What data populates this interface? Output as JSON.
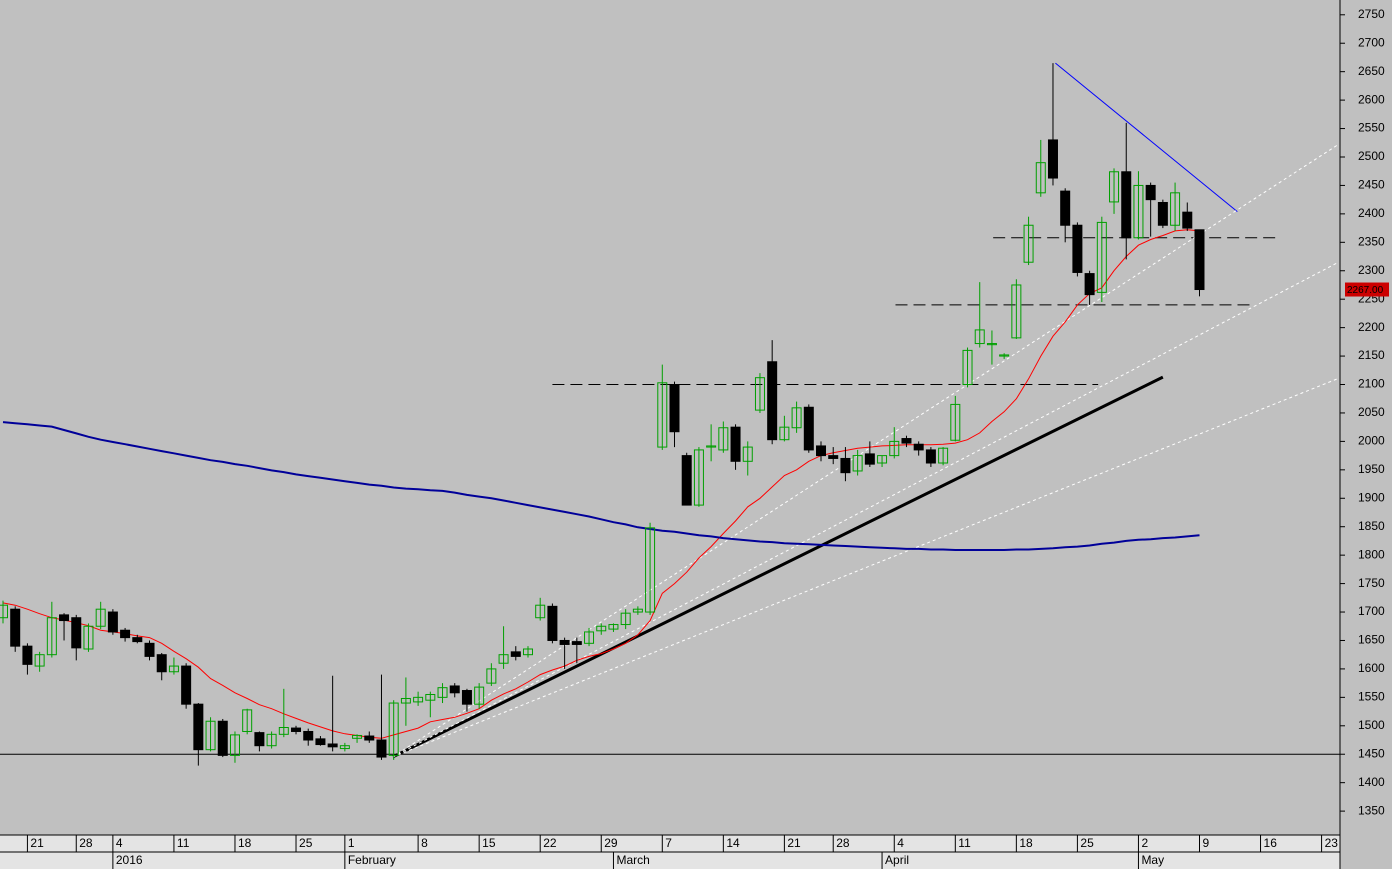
{
  "chart_data": {
    "type": "candlestick",
    "categories": [
      null,
      null,
      "21",
      null,
      null,
      null,
      "28",
      null,
      null,
      "4",
      null,
      null,
      null,
      null,
      "11",
      null,
      null,
      null,
      null,
      "18",
      null,
      null,
      null,
      null,
      "25",
      null,
      null,
      null,
      "1",
      null,
      null,
      null,
      null,
      null,
      "8",
      null,
      null,
      null,
      null,
      "15",
      null,
      null,
      null,
      null,
      "22",
      null,
      null,
      null,
      null,
      "29",
      null,
      null,
      null,
      null,
      "7",
      null,
      null,
      null,
      null,
      "14",
      null,
      null,
      null,
      null,
      "21",
      null,
      null,
      null,
      "28",
      null,
      null,
      null,
      null,
      "4",
      null,
      null,
      null,
      null,
      "11",
      null,
      null,
      null,
      null,
      "18",
      null,
      null,
      null,
      null,
      "25",
      null,
      null,
      null,
      null,
      "2",
      null,
      null,
      null,
      null,
      "9",
      null,
      null,
      null,
      null,
      "16",
      null,
      null,
      null,
      null,
      "23",
      null
    ],
    "month_categories": [
      null,
      null,
      null,
      null,
      null,
      null,
      null,
      null,
      null,
      "2016",
      null,
      null,
      null,
      null,
      null,
      null,
      null,
      null,
      null,
      null,
      null,
      null,
      null,
      null,
      null,
      null,
      null,
      null,
      "February",
      null,
      null,
      null,
      null,
      null,
      null,
      null,
      null,
      null,
      null,
      null,
      null,
      null,
      null,
      null,
      null,
      null,
      null,
      null,
      null,
      null,
      "March",
      null,
      null,
      null,
      null,
      null,
      null,
      null,
      null,
      null,
      null,
      null,
      null,
      null,
      null,
      null,
      null,
      null,
      null,
      null,
      null,
      null,
      "April",
      null,
      null,
      null,
      null,
      null,
      null,
      null,
      null,
      null,
      null,
      null,
      null,
      null,
      null,
      null,
      null,
      null,
      null,
      null,
      null,
      "May",
      null,
      null,
      null,
      null,
      null,
      null,
      null,
      null,
      null,
      null,
      null,
      null,
      null,
      null,
      null,
      null
    ],
    "open": [
      1690,
      1705,
      1640,
      1605,
      1625,
      1695,
      1690,
      1635,
      1675,
      1700,
      1668,
      1655,
      1645,
      1625,
      1595,
      1605,
      1538,
      1458,
      1508,
      1448,
      1490,
      1488,
      1465,
      1485,
      1496,
      1490,
      1477,
      1468,
      1460,
      1478,
      1482,
      1475,
      1448,
      1540,
      1542,
      1545,
      1550,
      1570,
      1562,
      1538,
      1575,
      1610,
      1630,
      1625,
      1690,
      1710,
      1650,
      1648,
      1645,
      1667,
      1670,
      1678,
      1700,
      1700,
      1990,
      2100,
      1975,
      1888,
      1990,
      1985,
      2025,
      1965,
      2055,
      2140,
      2003,
      2024,
      2060,
      1992,
      1975,
      1970,
      1948,
      1978,
      1962,
      1975,
      2005,
      1995,
      1985,
      1962,
      2002,
      2100,
      2172,
      2170,
      2150,
      2182,
      2315,
      2437,
      2530,
      2440,
      2380,
      2295,
      2262,
      2421,
      2474,
      2358,
      2450,
      2420,
      2380,
      2403,
      2372,
      null,
      null,
      null,
      null,
      null,
      null,
      null,
      null,
      null,
      null,
      null
    ],
    "high": [
      1720,
      1710,
      1645,
      1630,
      1718,
      1698,
      1695,
      1680,
      1718,
      1705,
      1672,
      1660,
      1650,
      1628,
      1620,
      1610,
      1540,
      1515,
      1512,
      1490,
      1530,
      1490,
      1490,
      1565,
      1500,
      1495,
      1482,
      1588,
      1470,
      1485,
      1490,
      1590,
      1545,
      1585,
      1560,
      1560,
      1575,
      1575,
      1565,
      1575,
      1610,
      1675,
      1640,
      1640,
      1725,
      1715,
      1655,
      1655,
      1672,
      1680,
      1680,
      1705,
      1710,
      1857,
      2135,
      2105,
      1980,
      1990,
      2030,
      2035,
      2030,
      2000,
      2120,
      2178,
      2045,
      2070,
      2065,
      2000,
      1990,
      1990,
      1985,
      2000,
      1975,
      2025,
      2010,
      2000,
      1990,
      1990,
      2080,
      2165,
      2280,
      2195,
      2155,
      2285,
      2395,
      2530,
      2665,
      2445,
      2385,
      2300,
      2395,
      2480,
      2560,
      2475,
      2455,
      2425,
      2455,
      2420,
      2372,
      null,
      null,
      null,
      null,
      null,
      null,
      null,
      null,
      null,
      null,
      null
    ],
    "low": [
      1680,
      1630,
      1590,
      1595,
      1620,
      1650,
      1615,
      1630,
      1670,
      1660,
      1648,
      1645,
      1615,
      1580,
      1590,
      1530,
      1430,
      1455,
      1445,
      1435,
      1485,
      1455,
      1460,
      1480,
      1485,
      1465,
      1465,
      1455,
      1455,
      1470,
      1470,
      1440,
      1440,
      1500,
      1535,
      1515,
      1540,
      1550,
      1525,
      1530,
      1570,
      1600,
      1615,
      1620,
      1685,
      1645,
      1600,
      1610,
      1640,
      1660,
      1665,
      1670,
      1695,
      1695,
      1985,
      1990,
      1888,
      1885,
      1965,
      1980,
      1950,
      1940,
      2050,
      1995,
      2000,
      2015,
      1980,
      1965,
      1960,
      1930,
      1940,
      1955,
      1955,
      1970,
      1990,
      1975,
      1955,
      1958,
      2000,
      2095,
      2165,
      2135,
      2145,
      2180,
      2310,
      2430,
      2450,
      2350,
      2290,
      2240,
      2245,
      2400,
      2320,
      2355,
      2360,
      2375,
      2370,
      2370,
      2255,
      null,
      null,
      null,
      null,
      null,
      null,
      null,
      null,
      null,
      null,
      null
    ],
    "close": [
      1712,
      1640,
      1608,
      1625,
      1690,
      1685,
      1637,
      1675,
      1705,
      1665,
      1655,
      1648,
      1622,
      1595,
      1605,
      1538,
      1458,
      1508,
      1448,
      1484,
      1528,
      1465,
      1485,
      1497,
      1490,
      1475,
      1467,
      1463,
      1465,
      1483,
      1475,
      1445,
      1540,
      1548,
      1550,
      1555,
      1567,
      1558,
      1538,
      1568,
      1600,
      1625,
      1622,
      1635,
      1712,
      1650,
      1643,
      1643,
      1665,
      1675,
      1678,
      1698,
      1705,
      1848,
      2103,
      2017,
      1888,
      1985,
      1992,
      2024,
      1965,
      1990,
      2112,
      2003,
      2025,
      2059,
      1985,
      1975,
      1970,
      1945,
      1975,
      1960,
      1975,
      2000,
      1997,
      1985,
      1962,
      1988,
      2065,
      2160,
      2196,
      2172,
      2152,
      2275,
      2380,
      2490,
      2463,
      2380,
      2297,
      2258,
      2385,
      2474,
      2358,
      2450,
      2425,
      2380,
      2437,
      2375,
      2267,
      null,
      null,
      null,
      null,
      null,
      null,
      null,
      null,
      null,
      null,
      null
    ],
    "up_color": "#00a000",
    "down_color": "#000000",
    "moving_averages": [
      {
        "color": "#ff0000",
        "values": [
          1716,
          1712,
          1705,
          1697,
          1690,
          1686,
          1681,
          1676,
          1668,
          1665,
          1662,
          1658,
          1655,
          1645,
          1631,
          1618,
          1603,
          1583,
          1571,
          1558,
          1548,
          1537,
          1530,
          1521,
          1513,
          1505,
          1498,
          1491,
          1486,
          1483,
          1480,
          1478,
          1484,
          1490,
          1496,
          1507,
          1511,
          1515,
          1522,
          1530,
          1545,
          1556,
          1565,
          1577,
          1590,
          1598,
          1605,
          1615,
          1622,
          1627,
          1635,
          1645,
          1660,
          1685,
          1733,
          1750,
          1770,
          1795,
          1815,
          1838,
          1860,
          1885,
          1900,
          1920,
          1940,
          1950,
          1965,
          1975,
          1980,
          1984,
          1988,
          1990,
          1992,
          1993,
          1994,
          1994,
          1994,
          1995,
          1997,
          2003,
          2015,
          2035,
          2052,
          2075,
          2110,
          2150,
          2185,
          2210,
          2240,
          2260,
          2270,
          2300,
          2325,
          2345,
          2355,
          2362,
          2370,
          2372,
          2370,
          null,
          null,
          null,
          null,
          null,
          null,
          null,
          null,
          null,
          null,
          null
        ]
      },
      {
        "color": "#000099",
        "values": [
          2034,
          2032,
          2030,
          2028,
          2026,
          2020,
          2014,
          2008,
          2003,
          1999,
          1995,
          1991,
          1987,
          1983,
          1979,
          1975,
          1971,
          1967,
          1964,
          1960,
          1957,
          1953,
          1949,
          1946,
          1942,
          1939,
          1936,
          1933,
          1930,
          1927,
          1924,
          1922,
          1919,
          1917,
          1916,
          1914,
          1913,
          1910,
          1906,
          1903,
          1900,
          1896,
          1892,
          1888,
          1884,
          1880,
          1876,
          1872,
          1868,
          1863,
          1858,
          1854,
          1849,
          1846,
          1843,
          1841,
          1838,
          1835,
          1833,
          1830,
          1828,
          1826,
          1824,
          1823,
          1821,
          1820,
          1819,
          1818,
          1817,
          1816,
          1815,
          1814,
          1813,
          1812,
          1811,
          1811,
          1810,
          1810,
          1809,
          1809,
          1809,
          1809,
          1809,
          1810,
          1810,
          1811,
          1812,
          1814,
          1815,
          1817,
          1820,
          1822,
          1825,
          1827,
          1828,
          1830,
          1831,
          1833,
          1835,
          null,
          null,
          null,
          null,
          null,
          null,
          null,
          null,
          null,
          null,
          null
        ]
      }
    ],
    "support_level": 1450,
    "overlays": [
      {
        "style": "dashed",
        "color": "#000000",
        "width": 1,
        "x": [
          45,
          89.7
        ],
        "y": [
          2100,
          2100
        ]
      },
      {
        "style": "dashed",
        "color": "#000000",
        "width": 1,
        "x": [
          81.1,
          104.2
        ],
        "y": [
          2358,
          2358
        ]
      },
      {
        "style": "dashed",
        "color": "#000000",
        "width": 1,
        "x": [
          73.1,
          102.1
        ],
        "y": [
          2240,
          2240
        ]
      },
      {
        "style": "solid",
        "color": "#000000",
        "width": 3,
        "x": [
          31.9,
          95
        ],
        "y": [
          1445,
          2113
        ]
      },
      {
        "style": "solid",
        "color": "#0000ff",
        "width": 1,
        "x": [
          86.2,
          101.1
        ],
        "y": [
          2665,
          2404
        ]
      },
      {
        "style": "dotted",
        "color": "#ffffff",
        "width": 1,
        "x": [
          31.9,
          109.3
        ],
        "y": [
          1445,
          2521
        ]
      },
      {
        "style": "dotted",
        "color": "#ffffff",
        "width": 1,
        "x": [
          31.9,
          109.3
        ],
        "y": [
          1445,
          2314
        ]
      },
      {
        "style": "dotted",
        "color": "#ffffff",
        "width": 1,
        "x": [
          31.9,
          109.3
        ],
        "y": [
          1445,
          2110
        ]
      }
    ],
    "last_price": {
      "value": 2267,
      "label": "2267.00"
    },
    "ylim": [
      1308,
      2776
    ],
    "yticks": [
      1350,
      1400,
      1450,
      1500,
      1550,
      1600,
      1650,
      1700,
      1750,
      1800,
      1850,
      1900,
      1950,
      2000,
      2050,
      2100,
      2150,
      2200,
      2250,
      2300,
      2350,
      2400,
      2450,
      2500,
      2550,
      2600,
      2650,
      2700,
      2750
    ]
  }
}
